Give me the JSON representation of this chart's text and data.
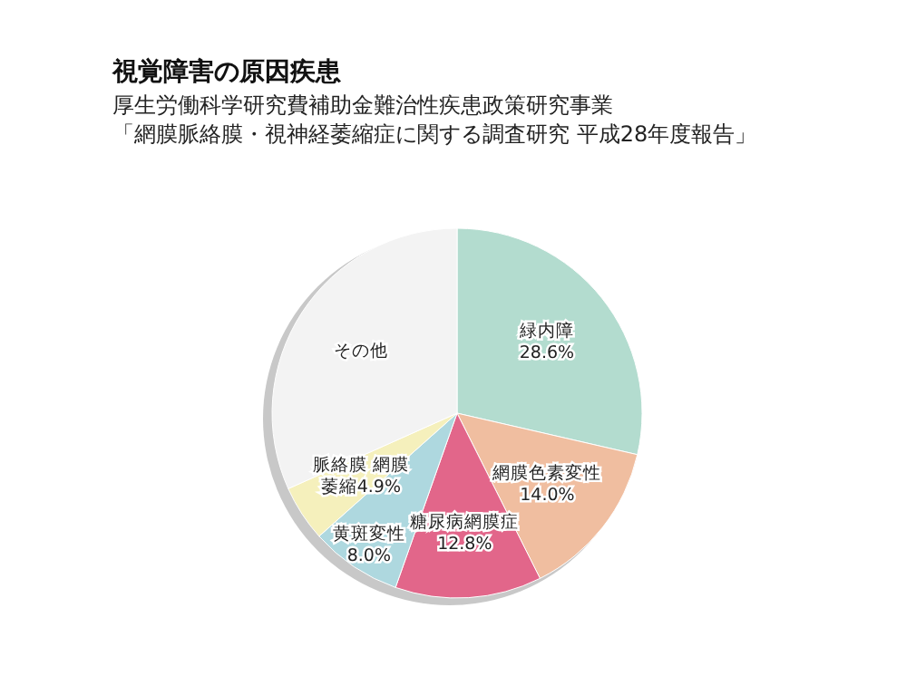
{
  "chart_data": {
    "type": "pie",
    "title": "視覚障害の原因疾患",
    "subtitle": "厚生労働科学研究費補助金難治性疾患政策研究事業",
    "annotations": [
      "「網膜脈絡膜・視神経萎縮症に関する調査研究 平成28年度報告」"
    ],
    "categories": [
      "緑内障",
      "網膜色素変性",
      "糖尿病網膜症",
      "黄斑変性",
      "脈絡膜 網膜萎縮",
      "その他"
    ],
    "values": [
      28.6,
      14.0,
      12.8,
      8.0,
      4.9,
      31.7
    ],
    "value_labels": [
      "28.6%",
      "14.0%",
      "12.8%",
      "8.0%",
      "4.9%",
      null
    ],
    "colors": [
      "#b3dccf",
      "#f0bea0",
      "#e2668a",
      "#aed8df",
      "#f5f0bc",
      "#f3f3f3"
    ]
  }
}
